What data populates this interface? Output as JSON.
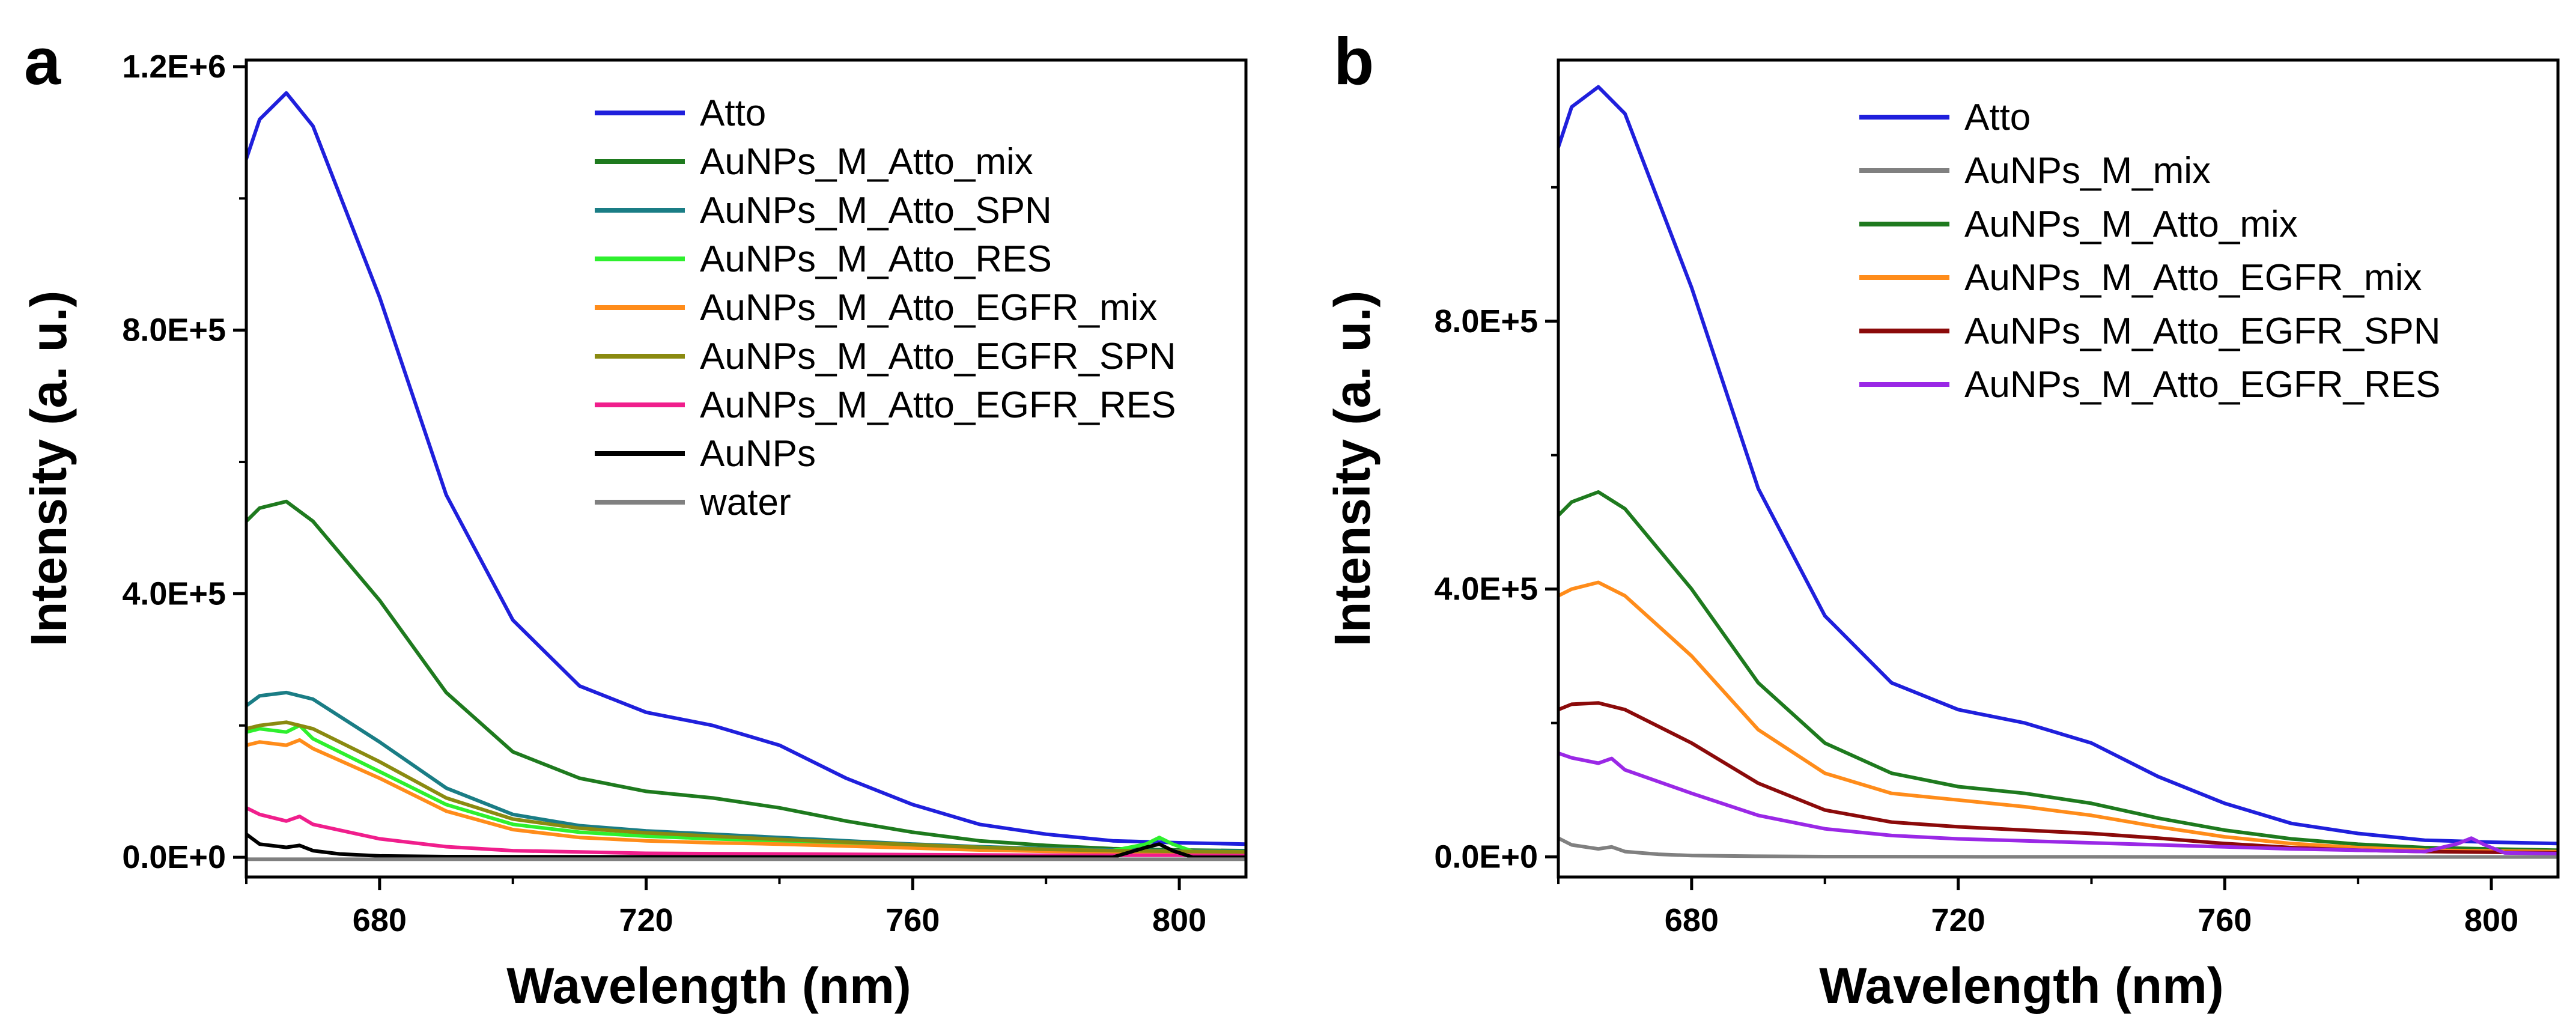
{
  "chart_data": [
    {
      "panel": "a",
      "type": "line",
      "xlabel": "Wavelength (nm)",
      "ylabel": "Intensity (a. u.)",
      "xlim": [
        660,
        810
      ],
      "ylim": [
        -30000,
        1210000
      ],
      "xticks": [
        680,
        720,
        760,
        800
      ],
      "xtick_labels": [
        "680",
        "720",
        "760",
        "800"
      ],
      "yticks": [
        0,
        400000,
        800000,
        1200000
      ],
      "ytick_labels": [
        "0.0E+0",
        "4.0E+5",
        "8.0E+5",
        "1.2E+6"
      ],
      "legend_position": "top-right",
      "series": [
        {
          "name": "Atto",
          "color": "#1f1fdc",
          "x": [
            660,
            662,
            666,
            670,
            680,
            690,
            700,
            710,
            720,
            730,
            740,
            750,
            760,
            770,
            780,
            790,
            800,
            810
          ],
          "y": [
            1060000,
            1120000,
            1160000,
            1110000,
            850000,
            550000,
            360000,
            260000,
            220000,
            200000,
            170000,
            120000,
            80000,
            50000,
            35000,
            25000,
            22000,
            20000
          ]
        },
        {
          "name": "AuNPs_M_Atto_mix",
          "color": "#1e7a1e",
          "x": [
            660,
            662,
            666,
            670,
            680,
            690,
            700,
            710,
            720,
            730,
            740,
            750,
            760,
            770,
            780,
            790,
            800,
            810
          ],
          "y": [
            510000,
            530000,
            540000,
            510000,
            390000,
            250000,
            160000,
            120000,
            100000,
            90000,
            75000,
            55000,
            38000,
            25000,
            18000,
            13000,
            11000,
            10000
          ]
        },
        {
          "name": "AuNPs_M_Atto_SPN",
          "color": "#1a7d85",
          "x": [
            660,
            662,
            666,
            670,
            680,
            690,
            700,
            710,
            720,
            730,
            740,
            750,
            760,
            770,
            780,
            790,
            800,
            810
          ],
          "y": [
            230000,
            245000,
            250000,
            240000,
            175000,
            105000,
            65000,
            48000,
            40000,
            35000,
            30000,
            25000,
            20000,
            16000,
            13000,
            11000,
            10000,
            9000
          ]
        },
        {
          "name": "AuNPs_M_Atto_RES",
          "color": "#2ef02e",
          "x": [
            660,
            662,
            666,
            668,
            670,
            680,
            690,
            700,
            710,
            720,
            730,
            740,
            750,
            760,
            770,
            780,
            790,
            795,
            797,
            799,
            802,
            810
          ],
          "y": [
            190000,
            195000,
            190000,
            200000,
            180000,
            130000,
            80000,
            50000,
            38000,
            32000,
            28000,
            25000,
            22000,
            18000,
            15000,
            12000,
            10000,
            20000,
            30000,
            20000,
            9000,
            8000
          ]
        },
        {
          "name": "AuNPs_M_Atto_EGFR_mix",
          "color": "#ff8c1a",
          "x": [
            660,
            662,
            666,
            668,
            670,
            680,
            690,
            700,
            710,
            720,
            730,
            740,
            750,
            760,
            770,
            780,
            790,
            800,
            810
          ],
          "y": [
            170000,
            175000,
            170000,
            178000,
            165000,
            120000,
            70000,
            42000,
            30000,
            25000,
            22000,
            20000,
            17000,
            14000,
            11000,
            9000,
            8000,
            7000,
            6000
          ]
        },
        {
          "name": "AuNPs_M_Atto_EGFR_SPN",
          "color": "#8a8a10",
          "x": [
            660,
            662,
            666,
            670,
            680,
            690,
            700,
            710,
            720,
            730,
            740,
            750,
            760,
            770,
            780,
            790,
            800,
            810
          ],
          "y": [
            195000,
            200000,
            205000,
            195000,
            145000,
            90000,
            58000,
            44000,
            37000,
            32000,
            27000,
            23000,
            19000,
            15000,
            12000,
            10000,
            9000,
            8000
          ]
        },
        {
          "name": "AuNPs_M_Atto_EGFR_RES",
          "color": "#f01e8c",
          "x": [
            660,
            662,
            666,
            668,
            670,
            680,
            690,
            700,
            710,
            720,
            740,
            760,
            780,
            800,
            810
          ],
          "y": [
            75000,
            65000,
            55000,
            62000,
            50000,
            28000,
            16000,
            10000,
            8000,
            6000,
            5000,
            4000,
            3000,
            3000,
            2500
          ]
        },
        {
          "name": "AuNPs",
          "color": "#000000",
          "x": [
            660,
            662,
            666,
            668,
            670,
            674,
            680,
            690,
            700,
            720,
            740,
            760,
            780,
            790,
            795,
            797,
            799,
            802,
            810
          ],
          "y": [
            35000,
            20000,
            15000,
            18000,
            10000,
            5000,
            2000,
            1000,
            800,
            500,
            300,
            200,
            100,
            0,
            15000,
            20000,
            10000,
            0,
            0
          ]
        },
        {
          "name": "water",
          "color": "#808080",
          "x": [
            660,
            680,
            700,
            720,
            740,
            760,
            780,
            800,
            810
          ],
          "y": [
            -3000,
            -3000,
            -3000,
            -3000,
            -3000,
            -3000,
            -3000,
            -3000,
            -3000
          ]
        }
      ]
    },
    {
      "panel": "b",
      "type": "line",
      "xlabel": "Wavelength (nm)",
      "ylabel": "Intensity (a. u.)",
      "xlim": [
        660,
        810
      ],
      "ylim": [
        -30000,
        1190000
      ],
      "xticks": [
        680,
        720,
        760,
        800
      ],
      "xtick_labels": [
        "680",
        "720",
        "760",
        "800"
      ],
      "yticks": [
        0,
        400000,
        800000
      ],
      "ytick_labels": [
        "0.0E+0",
        "4.0E+5",
        "8.0E+5"
      ],
      "legend_position": "top-right",
      "series": [
        {
          "name": "Atto",
          "color": "#1f1fdc",
          "x": [
            660,
            662,
            666,
            670,
            680,
            690,
            700,
            710,
            720,
            730,
            740,
            750,
            760,
            770,
            780,
            790,
            800,
            810
          ],
          "y": [
            1060000,
            1120000,
            1150000,
            1110000,
            850000,
            550000,
            360000,
            260000,
            220000,
            200000,
            170000,
            120000,
            80000,
            50000,
            35000,
            25000,
            22000,
            20000
          ]
        },
        {
          "name": "AuNPs_M_mix",
          "color": "#808080",
          "x": [
            660,
            662,
            666,
            668,
            670,
            675,
            680,
            690,
            700,
            720,
            740,
            760,
            780,
            790,
            800,
            810
          ],
          "y": [
            28000,
            18000,
            12000,
            15000,
            8000,
            4000,
            2000,
            1000,
            500,
            200,
            100,
            0,
            0,
            0,
            0,
            0
          ]
        },
        {
          "name": "AuNPs_M_Atto_mix",
          "color": "#1e7a1e",
          "x": [
            660,
            662,
            666,
            670,
            680,
            690,
            700,
            710,
            720,
            730,
            740,
            750,
            760,
            770,
            780,
            790,
            800,
            810
          ],
          "y": [
            510000,
            530000,
            545000,
            520000,
            400000,
            260000,
            170000,
            125000,
            105000,
            95000,
            80000,
            58000,
            40000,
            27000,
            19000,
            14000,
            12000,
            10000
          ]
        },
        {
          "name": "AuNPs_M_Atto_EGFR_mix",
          "color": "#ff8c1a",
          "x": [
            660,
            662,
            666,
            670,
            680,
            690,
            700,
            710,
            720,
            730,
            740,
            750,
            760,
            770,
            780,
            790,
            800,
            810
          ],
          "y": [
            390000,
            400000,
            410000,
            390000,
            300000,
            190000,
            125000,
            95000,
            85000,
            75000,
            62000,
            45000,
            30000,
            20000,
            14000,
            10000,
            9000,
            8000
          ]
        },
        {
          "name": "AuNPs_M_Atto_EGFR_SPN",
          "color": "#8b0a0a",
          "x": [
            660,
            662,
            666,
            670,
            680,
            690,
            700,
            710,
            720,
            730,
            740,
            750,
            760,
            770,
            780,
            790,
            800,
            810
          ],
          "y": [
            220000,
            228000,
            230000,
            220000,
            170000,
            110000,
            70000,
            52000,
            45000,
            40000,
            35000,
            28000,
            20000,
            14000,
            10000,
            8000,
            7000,
            6000
          ]
        },
        {
          "name": "AuNPs_M_Atto_EGFR_RES",
          "color": "#9a28e6",
          "x": [
            660,
            662,
            666,
            668,
            670,
            680,
            690,
            700,
            710,
            720,
            730,
            740,
            750,
            760,
            770,
            780,
            790,
            795,
            797,
            799,
            802,
            810
          ],
          "y": [
            155000,
            148000,
            140000,
            147000,
            130000,
            95000,
            62000,
            42000,
            32000,
            27000,
            24000,
            21000,
            18000,
            15000,
            12000,
            10000,
            8000,
            20000,
            28000,
            18000,
            6000,
            5000
          ]
        }
      ]
    }
  ]
}
